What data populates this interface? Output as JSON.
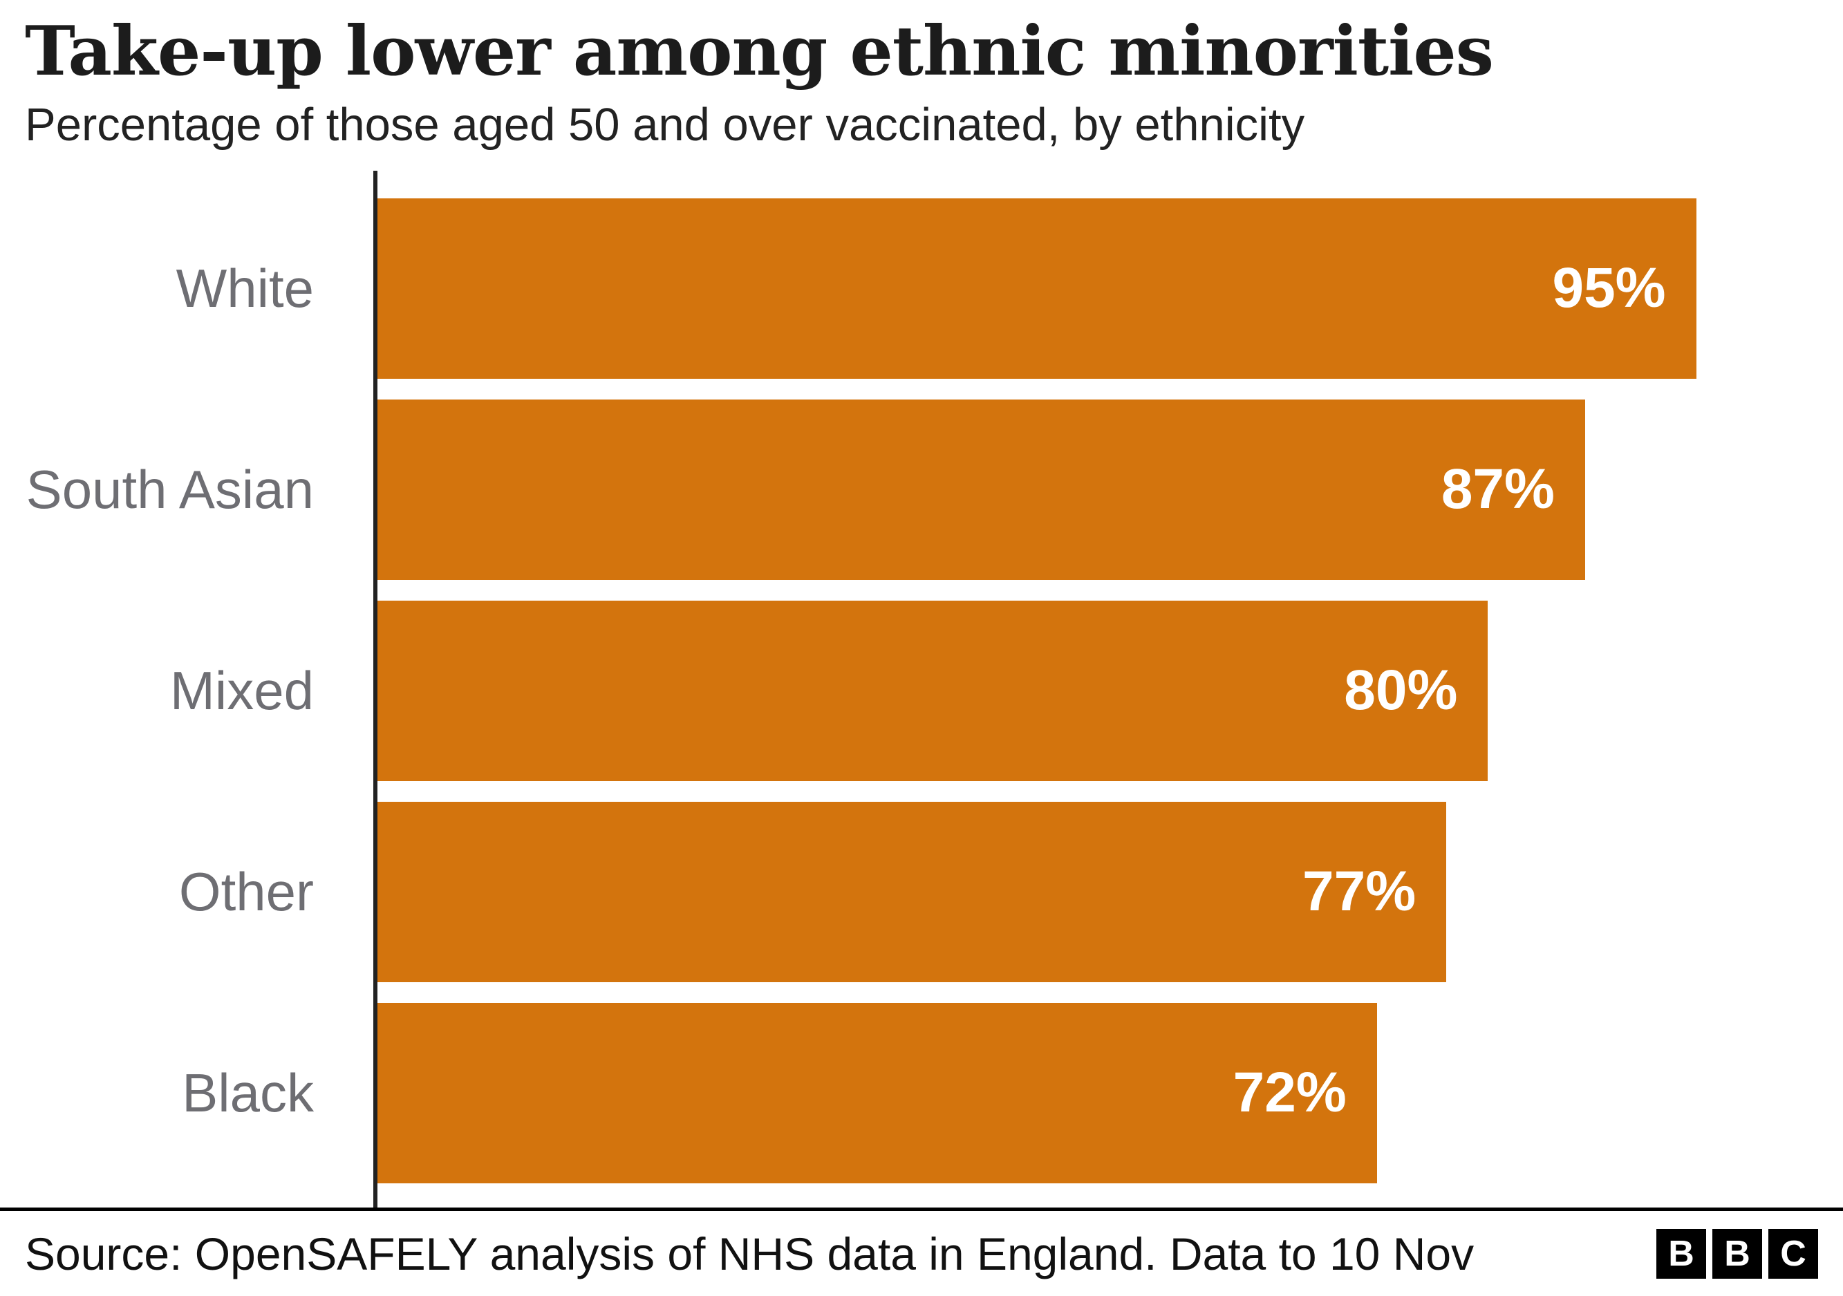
{
  "header": {
    "title": "Take-up lower among ethnic minorities",
    "subtitle": "Percentage of those aged 50 and over vaccinated, by ethnicity"
  },
  "chart_data": {
    "type": "bar",
    "orientation": "horizontal",
    "title": "Take-up lower among ethnic minorities",
    "subtitle": "Percentage of those aged 50 and over vaccinated, by ethnicity",
    "categories": [
      "White",
      "South Asian",
      "Mixed",
      "Other",
      "Black"
    ],
    "values": [
      95,
      87,
      80,
      77,
      72
    ],
    "value_labels": [
      "95%",
      "87%",
      "80%",
      "77%",
      "72%"
    ],
    "xlim": [
      0,
      100
    ],
    "grid": false,
    "legend": false,
    "bar_color": "#d3740d",
    "category_label_color": "#6e6e73",
    "value_label_color": "#ffffff"
  },
  "footer": {
    "source": "Source: OpenSAFELY analysis of NHS data in England. Data to 10 Nov",
    "logo_letters": [
      "B",
      "B",
      "C"
    ]
  }
}
